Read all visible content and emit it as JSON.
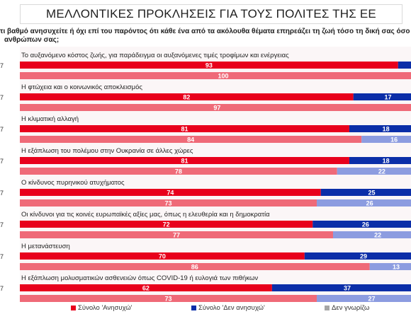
{
  "title": "ΜΕΛΛΟΝΤΙΚΕΣ ΠΡΟΚΛΗΣΕΙΣ ΓΙΑ ΤΟΥΣ ΠΟΛΙΤΕΣ ΤΗΣ ΕΕ",
  "question": {
    "line1": "τι βαθμό ανησυχείτε ή όχι επί του παρόντος ότι κάθε ένα από τα ακόλουθα θέματα επηρεάζει τη ζωή τόσο τη δική σας όσο κ",
    "line2": "ανθρώπων σας;"
  },
  "colors": {
    "series_a_current": "#e8001c",
    "series_a_previous": "#ef6a78",
    "series_b_current": "#0b2ea8",
    "series_b_previous": "#8c9ce0",
    "series_c": "#a6a6a6",
    "background_band": "#f3e6e8"
  },
  "chart_data": {
    "type": "bar",
    "orientation": "horizontal",
    "stacked": true,
    "xlim": [
      0,
      100
    ],
    "series": [
      {
        "name": "Σύνολο 'Ανησυχώ'"
      },
      {
        "name": "Σύνολο 'Δεν ανησυχώ'"
      },
      {
        "name": "Δεν γνωρίζω"
      }
    ],
    "rows": [
      {
        "label": "Το αυξανόμενο κόστος ζωής, για παράδειγμα οι αυξανόμενες τιμές τροφίμων και ενέργειας",
        "marker": "7",
        "current": {
          "a": 93,
          "b": 6,
          "c": 1,
          "a_label": "93",
          "b_label": ""
        },
        "previous": {
          "a": 100,
          "b": 0,
          "c": 0,
          "a_label": "100",
          "b_label": ""
        }
      },
      {
        "label": "Η φτώχεια και ο κοινωνικός αποκλεισμός",
        "marker": "7",
        "current": {
          "a": 82,
          "b": 17,
          "c": 1,
          "a_label": "82",
          "b_label": "17"
        },
        "previous": {
          "a": 97,
          "b": 3,
          "c": 0,
          "a_label": "97",
          "b_label": ""
        }
      },
      {
        "label": "Η κλιματική αλλαγή",
        "marker": "7",
        "current": {
          "a": 81,
          "b": 18,
          "c": 1,
          "a_label": "81",
          "b_label": "18"
        },
        "previous": {
          "a": 84,
          "b": 16,
          "c": 0,
          "a_label": "84",
          "b_label": "16"
        }
      },
      {
        "label": "Η εξάπλωση του πολέμου στην Ουκρανία σε άλλες χώρες",
        "marker": "7",
        "current": {
          "a": 81,
          "b": 18,
          "c": 1,
          "a_label": "81",
          "b_label": "18"
        },
        "previous": {
          "a": 78,
          "b": 22,
          "c": 0,
          "a_label": "78",
          "b_label": "22"
        }
      },
      {
        "label": "Ο κίνδυνος πυρηνικού ατυχήματος",
        "marker": "7",
        "current": {
          "a": 74,
          "b": 25,
          "c": 1,
          "a_label": "74",
          "b_label": "25"
        },
        "previous": {
          "a": 73,
          "b": 26,
          "c": 1,
          "a_label": "73",
          "b_label": "26"
        }
      },
      {
        "label": "Οι κίνδυνοι για τις κοινές ευρωπαϊκές αξίες μας, όπως η ελευθερία και η δημοκρατία",
        "marker": "7",
        "current": {
          "a": 72,
          "b": 26,
          "c": 2,
          "a_label": "72",
          "b_label": "26"
        },
        "previous": {
          "a": 77,
          "b": 22,
          "c": 1,
          "a_label": "77",
          "b_label": "22"
        }
      },
      {
        "label": "Η μετανάστευση",
        "marker": "7",
        "current": {
          "a": 70,
          "b": 29,
          "c": 1,
          "a_label": "70",
          "b_label": "29"
        },
        "previous": {
          "a": 86,
          "b": 13,
          "c": 1,
          "a_label": "86",
          "b_label": "13"
        }
      },
      {
        "label": "Η εξάπλωση μολυσματικών ασθενειών όπως COVID-19 ή ευλογιά των πιθήκων",
        "marker": "7",
        "current": {
          "a": 62,
          "b": 37,
          "c": 1,
          "a_label": "62",
          "b_label": "37"
        },
        "previous": {
          "a": 73,
          "b": 27,
          "c": 0,
          "a_label": "73",
          "b_label": "27"
        }
      }
    ]
  }
}
